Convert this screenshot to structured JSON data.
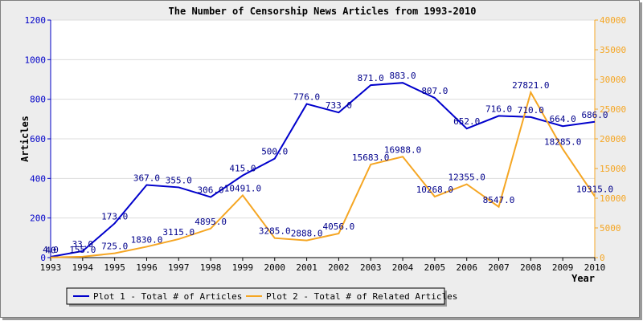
{
  "chart_data": {
    "type": "line",
    "title": "The Number of Censorship News Articles from 1993-2010",
    "xlabel": "Year",
    "ylabel": "Articles",
    "x": [
      1993,
      1994,
      1995,
      1996,
      1997,
      1998,
      1999,
      2000,
      2001,
      2002,
      2003,
      2004,
      2005,
      2006,
      2007,
      2008,
      2009,
      2010
    ],
    "ylim_left": [
      0,
      1200
    ],
    "ylim_right": [
      0,
      40000
    ],
    "yticks_left": [
      0,
      200,
      400,
      600,
      800,
      1000,
      1200
    ],
    "yticks_right": [
      0,
      5000,
      10000,
      15000,
      20000,
      25000,
      30000,
      35000,
      40000
    ],
    "grid": true,
    "legend_position": "bottom-left",
    "series": [
      {
        "name": "Plot 1 - Total # of Articles",
        "axis": "left",
        "color": "#0000cc",
        "values": [
          4,
          33,
          173,
          367,
          355,
          306,
          415,
          500,
          776,
          733,
          871,
          883,
          807,
          652,
          716,
          710,
          664,
          686
        ],
        "labels": [
          "4.0",
          "33.0",
          "173.0",
          "367.0",
          "355.0",
          "306.0",
          "415.0",
          "500.0",
          "776.0",
          "733.0",
          "871.0",
          "883.0",
          "807.0",
          "652.0",
          "716.0",
          "710.0",
          "664.0",
          "686.0"
        ]
      },
      {
        "name": "Plot 2 - Total # of Related Articles",
        "axis": "right",
        "color": "#f5a623",
        "values": [
          40,
          155,
          725,
          1830,
          3115,
          4895,
          10491,
          3285,
          2888,
          4056,
          15683,
          16988,
          10268,
          12355,
          8547,
          27821,
          18285,
          10315
        ],
        "labels": [
          "40",
          "155.0",
          "725.0",
          "1830.0",
          "3115.0",
          "4895.0",
          "10491.0",
          "3285.0",
          "2888.0",
          "4056.0",
          "15683.0",
          "16988.0",
          "10268.0",
          "12355.0",
          "8547.0",
          "27821.0",
          "18285.0",
          "10315.0"
        ]
      }
    ]
  }
}
